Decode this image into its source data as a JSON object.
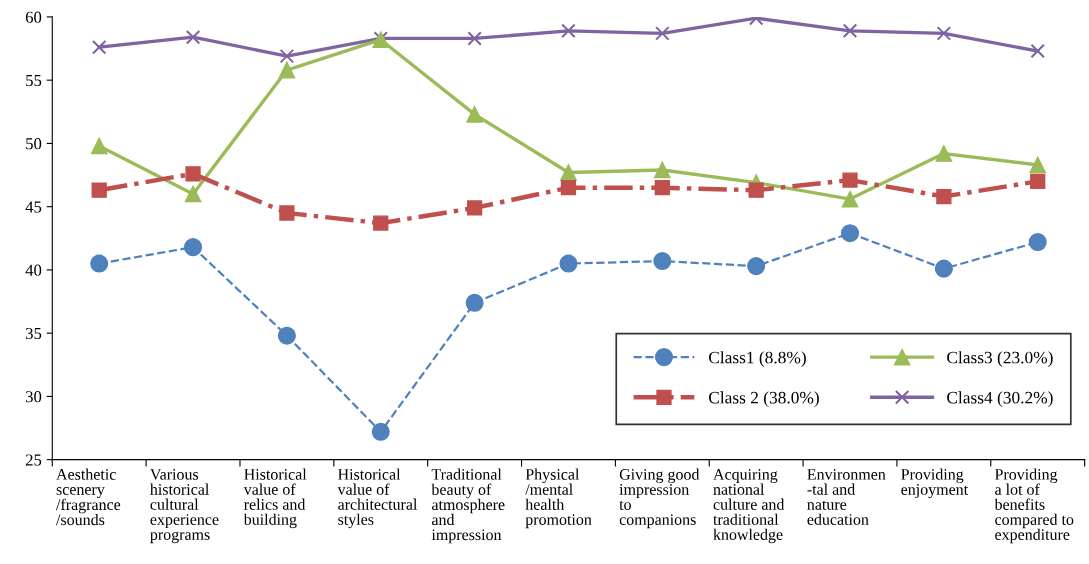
{
  "chart_data": {
    "type": "line",
    "categories": [
      "Aesthetic\nscenery\n/fragrance\n/sounds",
      "Various\nhistorical\ncultural\nexperience\nprograms",
      "Historical\nvalue of\nrelics and\nbuilding",
      "Historical\nvalue of\narchitectural\nstyles",
      "Traditional\nbeauty of\natmosphere\nand\nimpression",
      "Physical\n/mental\nhealth\npromotion",
      "Giving good\nimpression\nto\ncompanions",
      "Acquiring\nnational\nculture and\ntraditional\nknowledge",
      "Environmen\n-tal and\nnature\neducation",
      "Providing\nenjoyment",
      "Providing\na lot of\nbenefits\ncompared to\nexpenditure"
    ],
    "series": [
      {
        "name": "Class1 (8.8%)",
        "color": "#4f81bd",
        "marker": "circle",
        "line_style": "dashed",
        "values": [
          40.5,
          41.8,
          34.8,
          27.2,
          37.4,
          40.5,
          40.7,
          40.3,
          42.9,
          40.1,
          42.2
        ]
      },
      {
        "name": "Class 2 (38.0%)",
        "color": "#c0504d",
        "marker": "square",
        "line_style": "dashdot",
        "values": [
          46.3,
          47.6,
          44.5,
          43.7,
          44.9,
          46.5,
          46.5,
          46.3,
          47.1,
          45.8,
          47.0
        ]
      },
      {
        "name": "Class3 (23.0%)",
        "color": "#9bbb59",
        "marker": "triangle",
        "line_style": "solid",
        "values": [
          49.8,
          46.0,
          55.8,
          58.2,
          52.3,
          47.7,
          47.9,
          46.9,
          45.6,
          49.2,
          48.3
        ]
      },
      {
        "name": "Class4 (30.2%)",
        "color": "#8064a2",
        "marker": "cross",
        "line_style": "solid",
        "values": [
          57.6,
          58.4,
          56.9,
          58.3,
          58.3,
          58.9,
          58.7,
          59.9,
          58.9,
          58.7,
          57.3
        ]
      }
    ],
    "ylim": [
      25,
      60
    ],
    "yticks": [
      25,
      30,
      35,
      40,
      45,
      50,
      55,
      60
    ],
    "grid": false,
    "legend": "bottom right"
  }
}
